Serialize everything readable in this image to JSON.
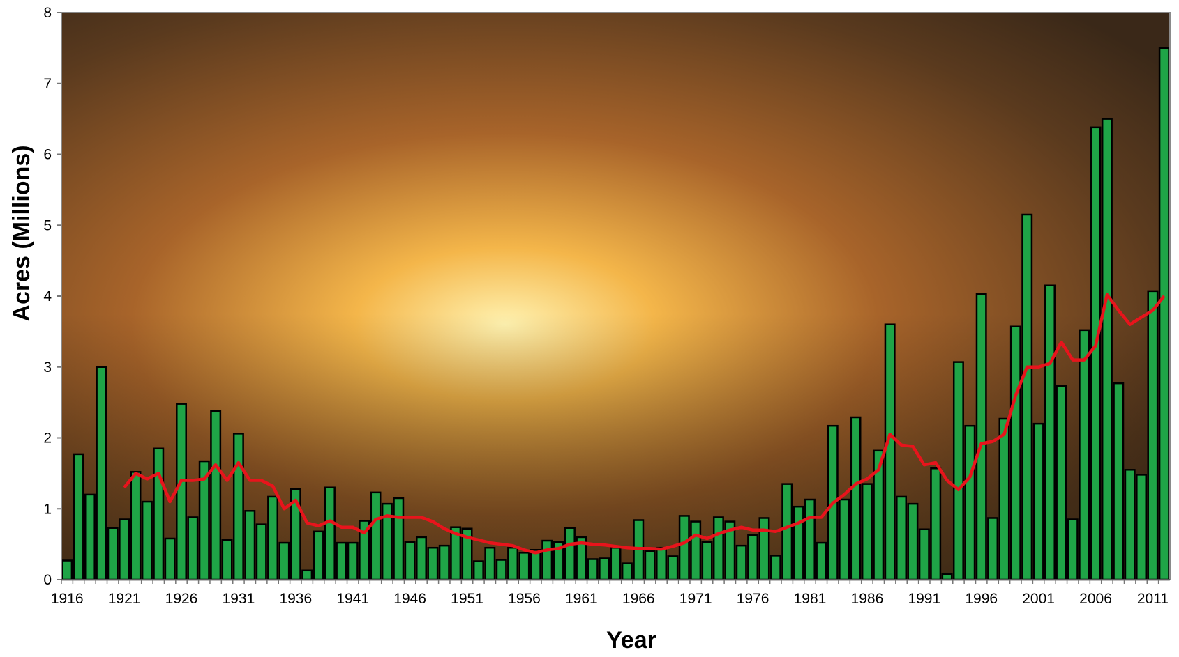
{
  "chart_data": {
    "type": "bar",
    "x_label": "Year",
    "y_label": "Acres (Millions)",
    "categories": [
      1916,
      null,
      null,
      null,
      null,
      1921,
      null,
      null,
      null,
      null,
      1926,
      null,
      null,
      null,
      null,
      1931,
      null,
      null,
      null,
      null,
      1936,
      null,
      null,
      null,
      null,
      1941,
      null,
      null,
      null,
      null,
      1946,
      null,
      null,
      null,
      null,
      1951,
      null,
      null,
      null,
      null,
      1956,
      null,
      null,
      null,
      null,
      1961,
      null,
      null,
      null,
      null,
      1966,
      null,
      null,
      null,
      null,
      1971,
      null,
      null,
      null,
      null,
      1976,
      null,
      null,
      null,
      null,
      1981,
      null,
      null,
      null,
      null,
      1986,
      null,
      null,
      null,
      null,
      1991,
      null,
      null,
      null,
      null,
      1996,
      null,
      null,
      null,
      null,
      2001,
      null,
      null,
      null,
      null,
      2006,
      null,
      null,
      null,
      null,
      2011,
      null
    ],
    "series": [
      {
        "type": "bar",
        "color": "#1fa447",
        "values": [
          0.27,
          1.77,
          1.2,
          3.0,
          0.73,
          0.85,
          1.52,
          1.1,
          1.85,
          0.58,
          2.48,
          0.88,
          1.67,
          2.38,
          0.56,
          2.06,
          0.97,
          0.78,
          1.17,
          0.52,
          1.28,
          0.13,
          0.68,
          1.3,
          0.52,
          0.52,
          0.83,
          1.23,
          1.07,
          1.15,
          0.53,
          0.6,
          0.45,
          0.48,
          0.74,
          0.72,
          0.26,
          0.45,
          0.28,
          0.45,
          0.38,
          0.42,
          0.55,
          0.53,
          0.73,
          0.6,
          0.29,
          0.3,
          0.45,
          0.23,
          0.84,
          0.4,
          0.45,
          0.33,
          0.9,
          0.82,
          0.53,
          0.88,
          0.82,
          0.48,
          0.63,
          0.87,
          0.34,
          1.35,
          1.03,
          1.13,
          0.52,
          2.17,
          1.13,
          2.29,
          1.35,
          1.82,
          3.6,
          1.17,
          1.07,
          0.71,
          1.57,
          0.08,
          3.07,
          2.17,
          4.03,
          0.87,
          2.27,
          3.57,
          5.15,
          2.2,
          4.15,
          2.73,
          0.85,
          3.52,
          6.38,
          6.5,
          2.77,
          1.55,
          1.48,
          4.07,
          7.5
        ]
      },
      {
        "type": "line",
        "color": "#e8141c",
        "values": [
          null,
          null,
          null,
          null,
          null,
          1.3,
          1.5,
          1.42,
          1.5,
          1.1,
          1.4,
          1.4,
          1.42,
          1.62,
          1.4,
          1.65,
          1.4,
          1.4,
          1.32,
          1.0,
          1.12,
          0.8,
          0.76,
          0.83,
          0.74,
          0.74,
          0.66,
          0.85,
          0.9,
          0.88,
          0.88,
          0.88,
          0.82,
          0.72,
          0.65,
          0.6,
          0.56,
          0.52,
          0.5,
          0.48,
          0.42,
          0.38,
          0.42,
          0.44,
          0.5,
          0.52,
          0.5,
          0.49,
          0.47,
          0.45,
          0.44,
          0.44,
          0.43,
          0.47,
          0.52,
          0.63,
          0.58,
          0.65,
          0.7,
          0.74,
          0.7,
          0.7,
          0.68,
          0.74,
          0.8,
          0.88,
          0.88,
          1.08,
          1.2,
          1.35,
          1.42,
          1.55,
          2.05,
          1.9,
          1.88,
          1.62,
          1.65,
          1.4,
          1.27,
          1.45,
          1.92,
          1.95,
          2.05,
          2.6,
          3.0,
          3.0,
          3.05,
          3.35,
          3.1,
          3.1,
          3.3,
          4.02,
          3.8,
          3.6,
          3.7,
          3.8,
          4.0
        ]
      }
    ],
    "ylim": [
      0,
      8
    ],
    "yticks": [
      0,
      1,
      2,
      3,
      4,
      5,
      6,
      7,
      8
    ]
  }
}
